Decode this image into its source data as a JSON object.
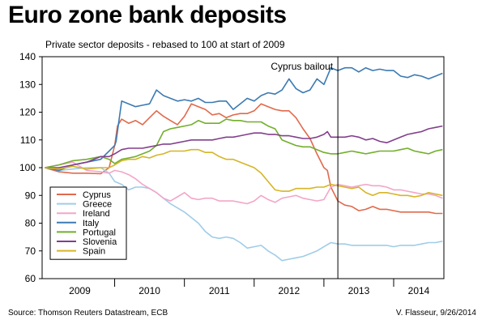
{
  "header": {
    "title": "Euro zone bank deposits",
    "subtitle": "Private sector deposits - rebased to 100 at start of 2009"
  },
  "footer": {
    "source": "Source: Thomson Reuters Datastream, ECB",
    "credit": "V. Flasseur, 9/26/2014"
  },
  "chart_data": {
    "type": "line",
    "title": "Euro zone bank deposits",
    "subtitle": "Private sector deposits - rebased to 100 at start of 2009",
    "x_ticks": [
      "2009",
      "2010",
      "2011",
      "2012",
      "2013",
      "2014"
    ],
    "xlim": [
      2008.96,
      2014.72
    ],
    "ylim": [
      60,
      140
    ],
    "y_ticks": [
      60,
      70,
      80,
      90,
      100,
      110,
      120,
      130,
      140
    ],
    "grid": false,
    "legend_position": "bottom-left",
    "annotations": [
      {
        "text": "Cyprus bailout",
        "x": 2013.2
      }
    ],
    "series": [
      {
        "name": "Cyprus",
        "color": "#e06a4c",
        "x": [
          2009.0,
          2009.2,
          2009.4,
          2009.6,
          2009.8,
          2009.92,
          2010.0,
          2010.04,
          2010.1,
          2010.2,
          2010.3,
          2010.4,
          2010.5,
          2010.6,
          2010.7,
          2010.8,
          2010.9,
          2011.0,
          2011.1,
          2011.2,
          2011.3,
          2011.4,
          2011.5,
          2011.6,
          2011.7,
          2011.8,
          2011.9,
          2012.0,
          2012.1,
          2012.2,
          2012.3,
          2012.4,
          2012.5,
          2012.6,
          2012.7,
          2012.8,
          2012.9,
          2013.0,
          2013.05,
          2013.1,
          2013.2,
          2013.3,
          2013.4,
          2013.5,
          2013.6,
          2013.7,
          2013.8,
          2013.9,
          2014.0,
          2014.1,
          2014.2,
          2014.3,
          2014.4,
          2014.5,
          2014.6,
          2014.7
        ],
        "values": [
          100,
          98.5,
          98,
          98,
          97.8,
          100,
          108,
          115,
          117.5,
          116,
          117,
          115.5,
          118,
          120.5,
          118.5,
          117,
          115.5,
          118.5,
          123,
          122,
          121,
          119,
          119.5,
          118,
          119,
          119.5,
          119.5,
          120.5,
          123,
          122,
          121,
          120.5,
          120.5,
          118,
          114,
          110.5,
          105,
          100,
          99,
          93,
          88,
          86.5,
          86,
          84.5,
          85,
          86,
          85,
          85,
          84.5,
          84,
          84,
          84,
          84,
          84,
          83.5,
          83.5
        ]
      },
      {
        "name": "Greece",
        "color": "#9fcde8",
        "x": [
          2009.0,
          2009.2,
          2009.4,
          2009.6,
          2009.8,
          2009.92,
          2010.0,
          2010.1,
          2010.2,
          2010.3,
          2010.4,
          2010.5,
          2010.6,
          2010.7,
          2010.8,
          2010.9,
          2011.0,
          2011.1,
          2011.2,
          2011.3,
          2011.4,
          2011.5,
          2011.6,
          2011.7,
          2011.8,
          2011.9,
          2012.0,
          2012.1,
          2012.2,
          2012.3,
          2012.4,
          2012.5,
          2012.6,
          2012.7,
          2012.8,
          2012.9,
          2013.0,
          2013.1,
          2013.2,
          2013.3,
          2013.4,
          2013.5,
          2013.6,
          2013.7,
          2013.8,
          2013.9,
          2014.0,
          2014.1,
          2014.2,
          2014.3,
          2014.4,
          2014.5,
          2014.6,
          2014.7
        ],
        "values": [
          100,
          99,
          99.5,
          100,
          100,
          98,
          95,
          94,
          92,
          93,
          93,
          92.5,
          91,
          89,
          87,
          85.5,
          84,
          82,
          80,
          77,
          75,
          74.5,
          75,
          74.5,
          73,
          71,
          71.5,
          72,
          70,
          68.5,
          66.5,
          67,
          67.5,
          68,
          69,
          70,
          71.5,
          73,
          72.5,
          72.5,
          72,
          72,
          72,
          72,
          72,
          72,
          71.5,
          72,
          72,
          72,
          72.5,
          73,
          73,
          73.5
        ]
      },
      {
        "name": "Ireland",
        "color": "#f3a6c8",
        "x": [
          2009.0,
          2009.2,
          2009.4,
          2009.6,
          2009.8,
          2009.92,
          2010.0,
          2010.1,
          2010.2,
          2010.3,
          2010.4,
          2010.5,
          2010.6,
          2010.7,
          2010.8,
          2010.9,
          2011.0,
          2011.1,
          2011.2,
          2011.3,
          2011.4,
          2011.5,
          2011.6,
          2011.7,
          2011.8,
          2011.9,
          2012.0,
          2012.1,
          2012.2,
          2012.3,
          2012.4,
          2012.5,
          2012.6,
          2012.7,
          2012.8,
          2012.9,
          2013.0,
          2013.1,
          2013.2,
          2013.3,
          2013.4,
          2013.5,
          2013.6,
          2013.7,
          2013.8,
          2013.9,
          2014.0,
          2014.1,
          2014.2,
          2014.3,
          2014.4,
          2014.5,
          2014.6,
          2014.7
        ],
        "values": [
          100,
          101,
          102,
          99,
          98.5,
          98,
          99,
          98.5,
          97.5,
          96,
          94,
          92.5,
          91,
          89,
          88,
          89.5,
          91,
          89,
          88.5,
          89,
          89,
          88,
          88,
          88,
          87.5,
          87,
          88,
          90,
          88.5,
          87.5,
          89,
          89.5,
          90,
          89,
          88.5,
          88,
          88.5,
          93,
          94,
          93.5,
          93,
          93.5,
          94,
          93.5,
          93.5,
          93,
          92,
          92,
          91.5,
          91,
          90.5,
          90.5,
          90,
          89
        ]
      },
      {
        "name": "Italy",
        "color": "#3c7ab2",
        "x": [
          2009.0,
          2009.2,
          2009.4,
          2009.6,
          2009.8,
          2009.92,
          2010.0,
          2010.02,
          2010.1,
          2010.2,
          2010.3,
          2010.4,
          2010.5,
          2010.6,
          2010.7,
          2010.8,
          2010.9,
          2011.0,
          2011.1,
          2011.2,
          2011.3,
          2011.4,
          2011.5,
          2011.6,
          2011.7,
          2011.8,
          2011.9,
          2012.0,
          2012.1,
          2012.2,
          2012.3,
          2012.4,
          2012.5,
          2012.6,
          2012.7,
          2012.8,
          2012.9,
          2013.0,
          2013.1,
          2013.2,
          2013.3,
          2013.4,
          2013.5,
          2013.6,
          2013.7,
          2013.8,
          2013.9,
          2014.0,
          2014.1,
          2014.2,
          2014.3,
          2014.4,
          2014.5,
          2014.6,
          2014.7
        ],
        "values": [
          100,
          99,
          101,
          102,
          103,
          106,
          108,
          109.5,
          124,
          123,
          122,
          122.5,
          123,
          128,
          126,
          125,
          124,
          124.5,
          124,
          125,
          123.5,
          123.5,
          124,
          124,
          121,
          123,
          125,
          124,
          126,
          127,
          126.5,
          128,
          132,
          128.5,
          127,
          128,
          132,
          130,
          136,
          135,
          136,
          136,
          134.5,
          136,
          135,
          135.5,
          135,
          135,
          133,
          132.5,
          133.5,
          133,
          132,
          133,
          134
        ]
      },
      {
        "name": "Portugal",
        "color": "#73ae2b",
        "x": [
          2009.0,
          2009.2,
          2009.4,
          2009.6,
          2009.8,
          2009.92,
          2010.0,
          2010.1,
          2010.2,
          2010.3,
          2010.4,
          2010.5,
          2010.6,
          2010.7,
          2010.8,
          2010.9,
          2011.0,
          2011.1,
          2011.2,
          2011.3,
          2011.4,
          2011.5,
          2011.6,
          2011.7,
          2011.8,
          2011.9,
          2012.0,
          2012.1,
          2012.2,
          2012.3,
          2012.4,
          2012.5,
          2012.6,
          2012.7,
          2012.8,
          2012.9,
          2013.0,
          2013.1,
          2013.2,
          2013.3,
          2013.4,
          2013.5,
          2013.6,
          2013.7,
          2013.8,
          2013.9,
          2014.0,
          2014.1,
          2014.2,
          2014.3,
          2014.4,
          2014.5,
          2014.6,
          2014.7
        ],
        "values": [
          100,
          101,
          102.5,
          103,
          104,
          103,
          101.5,
          103,
          103.5,
          104,
          105,
          106,
          108,
          113,
          114,
          114.5,
          115,
          115.5,
          117,
          116,
          116,
          116,
          117.5,
          117,
          117,
          116.5,
          116.5,
          116.5,
          115,
          114,
          110,
          109,
          108,
          107.5,
          107.5,
          106.5,
          105.5,
          105,
          105,
          105.5,
          106,
          105.5,
          105,
          105.5,
          106,
          106,
          106,
          106.5,
          107,
          106,
          105.5,
          105,
          106,
          106.5
        ]
      },
      {
        "name": "Slovenia",
        "color": "#823f8c",
        "x": [
          2009.0,
          2009.2,
          2009.4,
          2009.6,
          2009.8,
          2009.92,
          2010.0,
          2010.1,
          2010.2,
          2010.3,
          2010.4,
          2010.5,
          2010.6,
          2010.7,
          2010.8,
          2010.9,
          2011.0,
          2011.1,
          2011.2,
          2011.3,
          2011.4,
          2011.5,
          2011.6,
          2011.7,
          2011.8,
          2011.9,
          2012.0,
          2012.1,
          2012.2,
          2012.3,
          2012.4,
          2012.5,
          2012.6,
          2012.7,
          2012.8,
          2012.9,
          2013.0,
          2013.05,
          2013.1,
          2013.2,
          2013.3,
          2013.4,
          2013.5,
          2013.6,
          2013.7,
          2013.8,
          2013.9,
          2014.0,
          2014.1,
          2014.2,
          2014.3,
          2014.4,
          2014.5,
          2014.6,
          2014.7
        ],
        "values": [
          100,
          100,
          101,
          102,
          104,
          104,
          105,
          106.5,
          107,
          107,
          107,
          107.5,
          108,
          108.5,
          108.5,
          109,
          109.5,
          110,
          110,
          110,
          110,
          110.5,
          111,
          111,
          111.5,
          112,
          112.5,
          112.5,
          112,
          112,
          111.5,
          111.5,
          111,
          110.5,
          110.5,
          111,
          112,
          113,
          111,
          111,
          111,
          111.5,
          111,
          110,
          110.5,
          109.5,
          109,
          110,
          111,
          112,
          112.5,
          113,
          114,
          114.5,
          115
        ]
      },
      {
        "name": "Spain",
        "color": "#d6b527",
        "x": [
          2009.0,
          2009.2,
          2009.4,
          2009.6,
          2009.8,
          2009.92,
          2010.0,
          2010.1,
          2010.2,
          2010.3,
          2010.4,
          2010.5,
          2010.6,
          2010.7,
          2010.8,
          2010.9,
          2011.0,
          2011.1,
          2011.2,
          2011.3,
          2011.4,
          2011.5,
          2011.6,
          2011.7,
          2011.8,
          2011.9,
          2012.0,
          2012.1,
          2012.2,
          2012.3,
          2012.4,
          2012.5,
          2012.6,
          2012.7,
          2012.8,
          2012.9,
          2013.0,
          2013.1,
          2013.2,
          2013.3,
          2013.4,
          2013.5,
          2013.6,
          2013.7,
          2013.8,
          2013.9,
          2014.0,
          2014.1,
          2014.2,
          2014.3,
          2014.4,
          2014.5,
          2014.6,
          2014.7
        ],
        "values": [
          100,
          99.5,
          100.5,
          99.5,
          100,
          100,
          101,
          102.5,
          103,
          103,
          104,
          103.5,
          104.5,
          105,
          106,
          106,
          106,
          106.5,
          106.5,
          105.5,
          105.5,
          104,
          103,
          103,
          102,
          101,
          100,
          98,
          95,
          92,
          91.5,
          91.5,
          92.5,
          92.5,
          92.5,
          93,
          93,
          94,
          93.5,
          93,
          92.5,
          93,
          91,
          90,
          91,
          91,
          90.5,
          90,
          90,
          89.5,
          90,
          91,
          90.5,
          90
        ]
      }
    ]
  }
}
